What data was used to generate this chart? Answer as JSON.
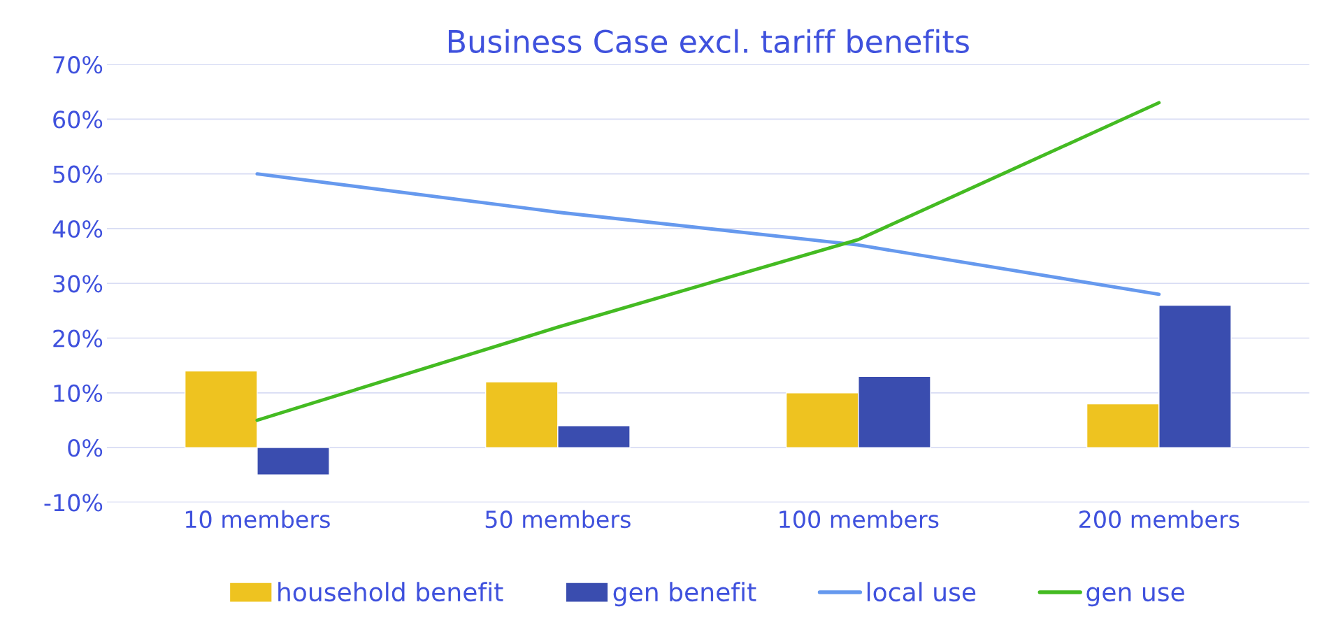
{
  "chart_data": {
    "type": "bar",
    "title": "Business Case excl. tariff benefits",
    "categories": [
      "10 members",
      "50 members",
      "100 members",
      "200 members"
    ],
    "series": [
      {
        "name": "household benefit",
        "color": "#eec320",
        "values": [
          14,
          12,
          10,
          8
        ]
      },
      {
        "name": "gen benefit",
        "color": "#3a4daf",
        "values": [
          -5,
          4,
          13,
          26
        ]
      },
      {
        "name": "local use",
        "type": "line",
        "color": "#6699ee",
        "values": [
          50,
          43,
          37,
          28
        ]
      },
      {
        "name": "gen use",
        "type": "line",
        "color": "#44bb22",
        "values": [
          5,
          22,
          38,
          63
        ]
      }
    ],
    "ylim": [
      -10,
      70
    ],
    "yticks": [
      {
        "value": -10,
        "label": "-10%"
      },
      {
        "value": 0,
        "label": "0%"
      },
      {
        "value": 10,
        "label": "10%"
      },
      {
        "value": 20,
        "label": "20%"
      },
      {
        "value": 30,
        "label": "30%"
      },
      {
        "value": 40,
        "label": "40%"
      },
      {
        "value": 50,
        "label": "50%"
      },
      {
        "value": 60,
        "label": "60%"
      },
      {
        "value": 70,
        "label": "70%"
      }
    ],
    "grid": "y",
    "legend": "bottom",
    "marker": "none",
    "line_style": "solid"
  }
}
